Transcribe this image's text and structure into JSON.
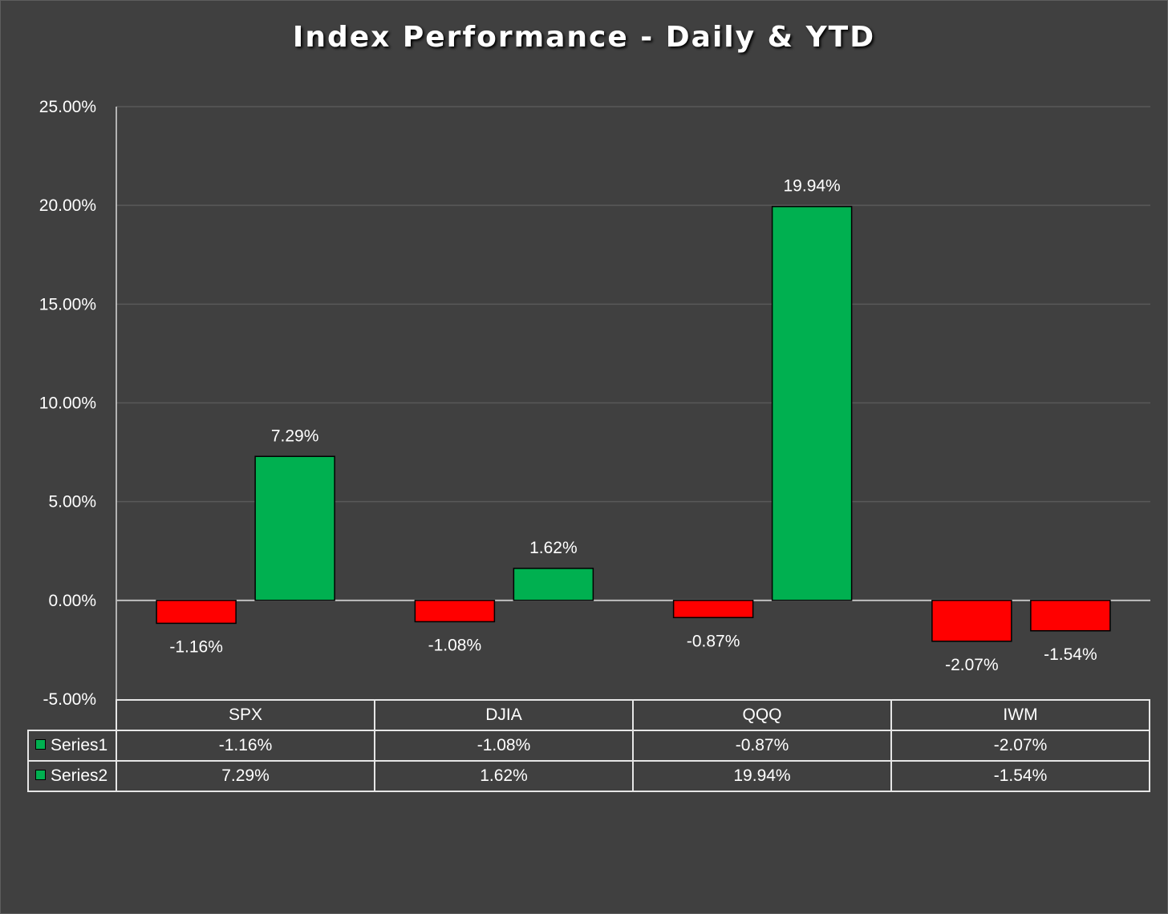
{
  "chart_data": {
    "type": "bar",
    "title": "Index Performance - Daily & YTD",
    "categories": [
      "SPX",
      "DJIA",
      "QQQ",
      "IWM"
    ],
    "series": [
      {
        "name": "Series1",
        "values": [
          -1.16,
          -1.08,
          -0.87,
          -2.07
        ],
        "labels": [
          "-1.16%",
          "-1.08%",
          "-0.87%",
          "-2.07%"
        ]
      },
      {
        "name": "Series2",
        "values": [
          7.29,
          1.62,
          19.94,
          -1.54
        ],
        "labels": [
          "7.29%",
          "1.62%",
          "19.94%",
          "-1.54%"
        ]
      }
    ],
    "ylim": [
      -5,
      25
    ],
    "yticks": [
      25,
      20,
      15,
      10,
      5,
      0,
      -5
    ],
    "ytick_labels": [
      "25.00%",
      "20.00%",
      "15.00%",
      "10.00%",
      "5.00%",
      "0.00%",
      "-5.00%"
    ],
    "positive_color": "#00b050",
    "negative_color": "#ff0000",
    "legend_key_color": "#00b050",
    "grid": true,
    "data_table": true
  },
  "colors": {
    "background": "#404040",
    "text": "#ffffff",
    "gridline": "#595959"
  }
}
